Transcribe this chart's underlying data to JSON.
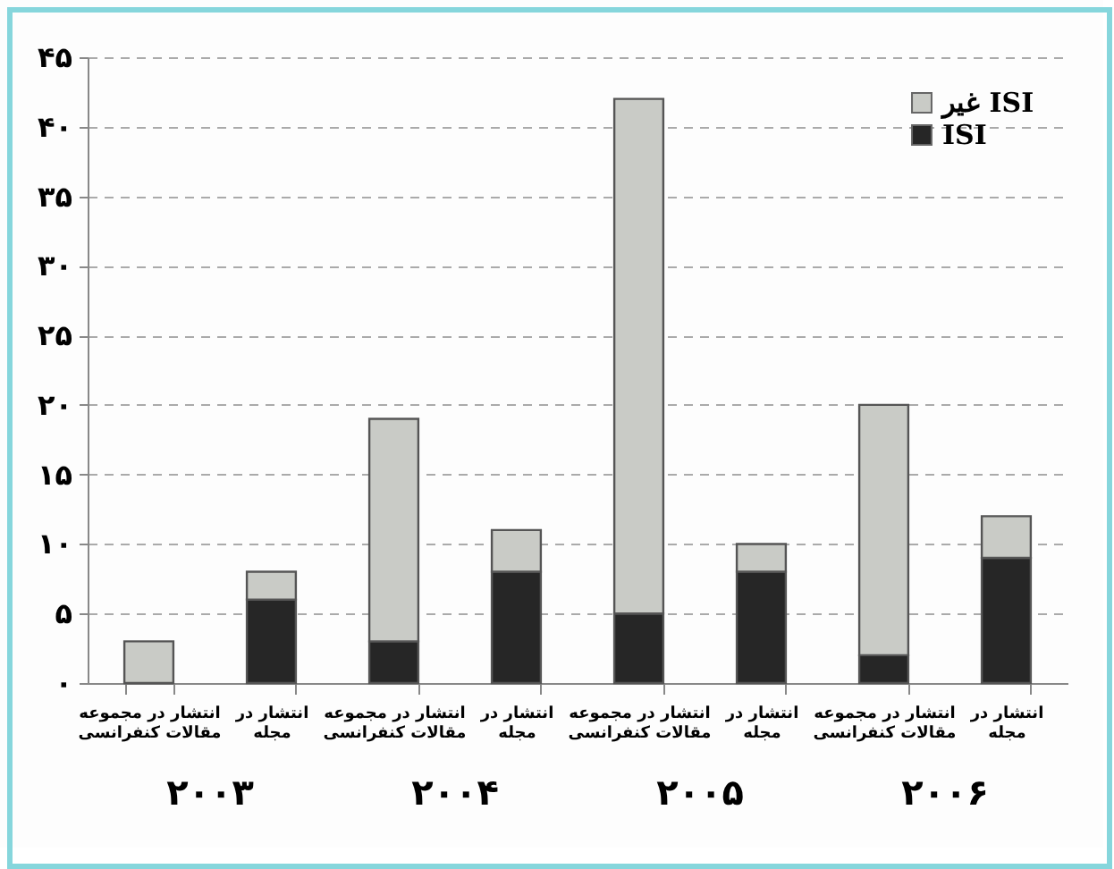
{
  "chart_data": {
    "type": "bar",
    "stacked": true,
    "categories": [
      "انتشار در مجموعه مقالات کنفرانسی",
      "انتشار در مجله",
      "انتشار در مجموعه مقالات کنفرانسی",
      "انتشار در مجله",
      "انتشار در مجموعه مقالات کنفرانسی",
      "انتشار در مجله",
      "انتشار در مجموعه مقالات کنفرانسی",
      "انتشار در مجله"
    ],
    "series": [
      {
        "name": "ISI",
        "color": "#262626",
        "values": [
          0,
          6,
          3,
          8,
          5,
          8,
          2,
          9
        ]
      },
      {
        "name": "غیر ISI",
        "color": "#c9cbc6",
        "values": [
          3,
          2,
          16,
          3,
          37,
          2,
          18,
          3
        ]
      }
    ],
    "ylim": [
      0,
      45
    ],
    "yticks": [
      {
        "value": 0,
        "label": "۰"
      },
      {
        "value": 5,
        "label": "۵"
      },
      {
        "value": 10,
        "label": "۱۰"
      },
      {
        "value": 15,
        "label": "۱۵"
      },
      {
        "value": 20,
        "label": "۲۰"
      },
      {
        "value": 25,
        "label": "۲۵"
      },
      {
        "value": 30,
        "label": "۳۰"
      },
      {
        "value": 35,
        "label": "۳۵"
      },
      {
        "value": 40,
        "label": "۴۰"
      },
      {
        "value": 45,
        "label": "۴۵"
      }
    ],
    "grid": "y",
    "legend": "top right",
    "annotations": [
      "۲۰۰۳",
      "۲۰۰۴",
      "۲۰۰۵",
      "۲۰۰۶"
    ]
  }
}
